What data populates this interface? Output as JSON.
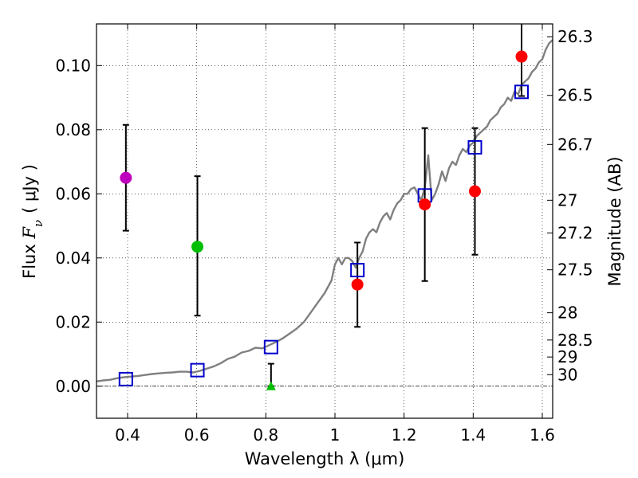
{
  "chart_data": {
    "type": "scatter",
    "xlabel": "Wavelength  λ (μm)",
    "ylabel": "Flux  F_ν  ( μJy )",
    "ylabel_parts": {
      "prefix": "Flux  ",
      "symbol": "F",
      "subscript": "ν",
      "unit": "( μJy )"
    },
    "y2label": "Magnitude (AB)",
    "xlim": [
      0.31,
      1.63
    ],
    "ylim": [
      -0.01,
      0.113
    ],
    "grid": true,
    "x_ticks": [
      0.4,
      0.6,
      0.8,
      1.0,
      1.2,
      1.4,
      1.6
    ],
    "x_tick_labels": [
      "0.4",
      "0.6",
      "0.8",
      "1",
      "1.2",
      "1.4",
      "1.6"
    ],
    "y_ticks": [
      0.0,
      0.02,
      0.04,
      0.06,
      0.08,
      0.1
    ],
    "y_tick_labels": [
      "0.00",
      "0.02",
      "0.04",
      "0.06",
      "0.08",
      "0.10"
    ],
    "y2_ticks": [
      {
        "label": "26.3",
        "flux": 0.109
      },
      {
        "label": "26.5",
        "flux": 0.0907
      },
      {
        "label": "26.7",
        "flux": 0.0754
      },
      {
        "label": "27",
        "flux": 0.058
      },
      {
        "label": "27.2",
        "flux": 0.0478
      },
      {
        "label": "27.5",
        "flux": 0.0363
      },
      {
        "label": "28",
        "flux": 0.0229
      },
      {
        "label": "28.5",
        "flux": 0.0144
      },
      {
        "label": "29",
        "flux": 0.0091
      },
      {
        "label": "30",
        "flux": 0.0036
      }
    ],
    "observed_points": [
      {
        "x": 0.395,
        "y": 0.065,
        "err_low": 0.0485,
        "err_high": 0.0815,
        "color": "#bf00bf",
        "marker": "circle"
      },
      {
        "x": 0.602,
        "y": 0.0435,
        "err_low": 0.022,
        "err_high": 0.0655,
        "color": "#00bf00",
        "marker": "circle"
      },
      {
        "x": 0.815,
        "y": 0.0,
        "err_low": 0.0,
        "err_high": 0.007,
        "color": "#00bf00",
        "marker": "triangle"
      },
      {
        "x": 1.065,
        "y": 0.0317,
        "err_low": 0.0185,
        "err_high": 0.0448,
        "color": "#ff0000",
        "marker": "circle"
      },
      {
        "x": 1.26,
        "y": 0.0567,
        "err_low": 0.0328,
        "err_high": 0.0805,
        "color": "#ff0000",
        "marker": "circle"
      },
      {
        "x": 1.405,
        "y": 0.0608,
        "err_low": 0.041,
        "err_high": 0.0805,
        "color": "#ff0000",
        "marker": "circle"
      },
      {
        "x": 1.54,
        "y": 0.1028,
        "err_low": 0.0905,
        "err_high": 0.113,
        "color": "#ff0000",
        "marker": "circle"
      }
    ],
    "model_points": {
      "color": "#0000cc",
      "marker": "square",
      "x": [
        0.395,
        0.602,
        0.815,
        1.065,
        1.26,
        1.405,
        1.54
      ],
      "y": [
        0.0022,
        0.005,
        0.0122,
        0.0362,
        0.0595,
        0.0745,
        0.0918
      ]
    },
    "model_curve": {
      "color": "#808080",
      "x": [
        0.31,
        0.33,
        0.35,
        0.37,
        0.39,
        0.41,
        0.43,
        0.45,
        0.47,
        0.49,
        0.51,
        0.53,
        0.55,
        0.57,
        0.59,
        0.61,
        0.63,
        0.65,
        0.67,
        0.69,
        0.71,
        0.73,
        0.75,
        0.77,
        0.79,
        0.81,
        0.83,
        0.85,
        0.87,
        0.89,
        0.91,
        0.93,
        0.95,
        0.97,
        0.99,
        1.0,
        1.01,
        1.02,
        1.03,
        1.04,
        1.05,
        1.06,
        1.07,
        1.08,
        1.09,
        1.1,
        1.11,
        1.12,
        1.13,
        1.14,
        1.15,
        1.16,
        1.17,
        1.18,
        1.19,
        1.2,
        1.21,
        1.22,
        1.23,
        1.24,
        1.25,
        1.26,
        1.27,
        1.28,
        1.29,
        1.3,
        1.31,
        1.32,
        1.33,
        1.34,
        1.35,
        1.36,
        1.37,
        1.38,
        1.39,
        1.4,
        1.41,
        1.42,
        1.43,
        1.44,
        1.45,
        1.46,
        1.47,
        1.48,
        1.49,
        1.5,
        1.51,
        1.52,
        1.53,
        1.54,
        1.55,
        1.56,
        1.57,
        1.58,
        1.59,
        1.6,
        1.61,
        1.62,
        1.63
      ],
      "y": [
        0.0015,
        0.0018,
        0.002,
        0.0025,
        0.0028,
        0.003,
        0.0032,
        0.0035,
        0.0038,
        0.004,
        0.0042,
        0.0043,
        0.0045,
        0.0045,
        0.0043,
        0.0048,
        0.0055,
        0.0062,
        0.0072,
        0.0085,
        0.0092,
        0.0105,
        0.011,
        0.012,
        0.0118,
        0.0128,
        0.0138,
        0.015,
        0.0165,
        0.018,
        0.02,
        0.023,
        0.026,
        0.029,
        0.033,
        0.038,
        0.04,
        0.038,
        0.04,
        0.04,
        0.039,
        0.037,
        0.04,
        0.042,
        0.046,
        0.048,
        0.049,
        0.048,
        0.051,
        0.053,
        0.054,
        0.052,
        0.055,
        0.057,
        0.058,
        0.06,
        0.06,
        0.0615,
        0.062,
        0.06,
        0.058,
        0.062,
        0.072,
        0.058,
        0.06,
        0.063,
        0.067,
        0.064,
        0.068,
        0.07,
        0.069,
        0.072,
        0.074,
        0.073,
        0.075,
        0.076,
        0.078,
        0.079,
        0.08,
        0.081,
        0.083,
        0.084,
        0.085,
        0.087,
        0.088,
        0.09,
        0.089,
        0.092,
        0.091,
        0.094,
        0.095,
        0.096,
        0.098,
        0.099,
        0.101,
        0.102,
        0.105,
        0.107,
        0.108
      ]
    }
  }
}
